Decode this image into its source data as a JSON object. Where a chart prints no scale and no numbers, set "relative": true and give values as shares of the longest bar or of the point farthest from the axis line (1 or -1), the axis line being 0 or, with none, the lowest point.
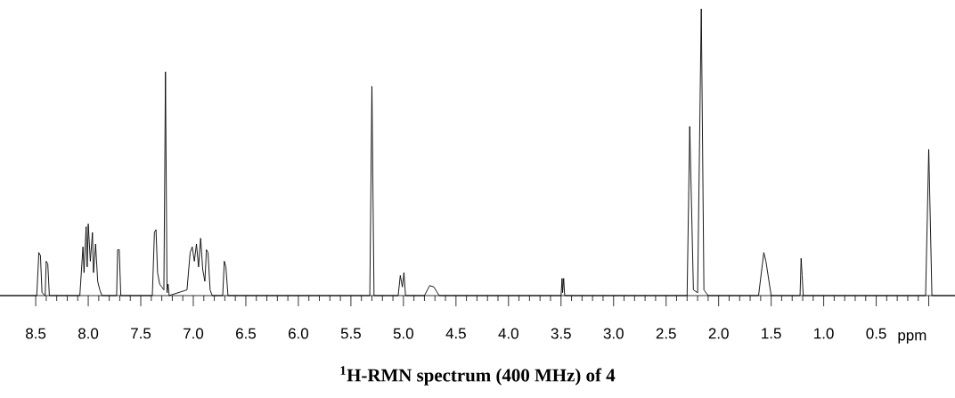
{
  "chart_data": {
    "type": "line",
    "title": "$^{1}$H-RMN spectrum (400 MHz) of 4",
    "xlabel": "ppm",
    "relative": true,
    "marker": "none",
    "xlim": [
      8.84,
      -0.25
    ],
    "xticks": [
      8.5,
      {
        "value": 8,
        "label": "8.0"
      },
      7.5,
      {
        "value": 7,
        "label": "7.0"
      },
      6.5,
      {
        "value": 6,
        "label": "6.0"
      },
      5.5,
      {
        "value": 5,
        "label": "5.0"
      },
      4.5,
      {
        "value": 4,
        "label": "4.0"
      },
      3.5,
      {
        "value": 3,
        "label": "3.0"
      },
      2.5,
      {
        "value": 2,
        "label": "2.0"
      },
      1.5,
      {
        "value": 1,
        "label": "1.0"
      },
      0.5,
      {
        "value": 0,
        "label": null
      }
    ],
    "series": [
      {
        "color": "#000000",
        "x": [
          8.84,
          8.49,
          8.47,
          8.455,
          8.44,
          8.41,
          8.4,
          8.385,
          8.37,
          8.08,
          8.05,
          8.04,
          8.02,
          8.01,
          8.0,
          7.98,
          7.96,
          7.95,
          7.93,
          7.91,
          7.89,
          7.87,
          7.73,
          7.72,
          7.705,
          7.69,
          7.39,
          7.37,
          7.355,
          7.34,
          7.32,
          7.3,
          7.28,
          7.265,
          7.25,
          7.24,
          7.23,
          7.06,
          7.03,
          7.01,
          6.99,
          6.97,
          6.95,
          6.93,
          6.91,
          6.89,
          6.875,
          6.86,
          6.84,
          6.82,
          6.72,
          6.705,
          6.69,
          6.67,
          5.32,
          5.3,
          5.28,
          5.05,
          5.03,
          5.01,
          4.995,
          4.98,
          4.8,
          4.75,
          4.71,
          4.66,
          3.5,
          3.49,
          3.485,
          3.475,
          3.465,
          2.3,
          2.275,
          2.24,
          2.2,
          2.165,
          2.14,
          2.1,
          1.62,
          1.57,
          1.55,
          1.5,
          1.225,
          1.215,
          1.205,
          1.195,
          0.03,
          0.0,
          -0.03,
          -0.25
        ],
        "values": [
          0,
          0,
          0.15,
          0.14,
          0.01,
          0,
          0.12,
          0.11,
          0,
          0,
          0.17,
          0.08,
          0.24,
          0.1,
          0.25,
          0.12,
          0.22,
          0.08,
          0.18,
          0.05,
          0.02,
          0,
          0,
          0.16,
          0.16,
          0,
          0,
          0.22,
          0.23,
          0.08,
          0.04,
          0.03,
          0.02,
          0.78,
          0.01,
          0.04,
          0,
          0.02,
          0.15,
          0.17,
          0.12,
          0.18,
          0.1,
          0.2,
          0.09,
          0.05,
          0.16,
          0.15,
          0.02,
          0,
          0,
          0.12,
          0.1,
          0,
          0,
          0.73,
          0,
          0,
          0.07,
          0.03,
          0.08,
          0,
          0,
          0.035,
          0.03,
          0,
          0,
          0.06,
          0.01,
          0.06,
          0,
          0,
          0.59,
          0.02,
          0.01,
          1.0,
          0.02,
          0,
          0,
          0.15,
          0.12,
          0,
          0,
          0.13,
          0.07,
          0,
          0,
          0.51,
          0,
          0
        ]
      }
    ]
  }
}
